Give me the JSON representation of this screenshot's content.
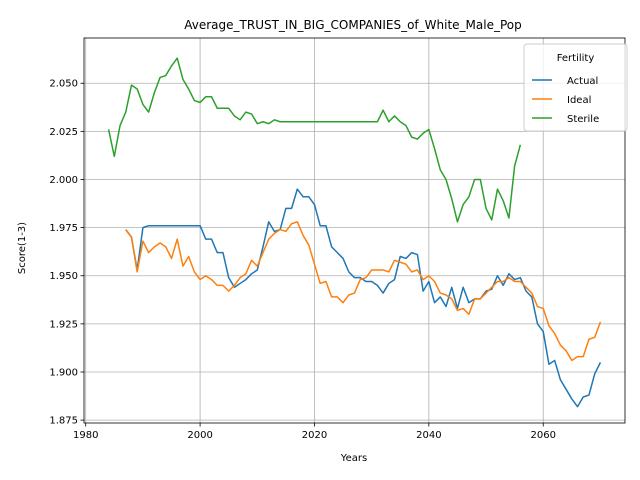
{
  "chart_data": {
    "type": "line",
    "title": "Average_TRUST_IN_BIG_COMPANIES_of_White_Male_Pop",
    "xlabel": "Years",
    "ylabel": "Score(1-3)",
    "xlim": [
      1979.7,
      2074.3
    ],
    "ylim": [
      1.8735,
      2.0735
    ],
    "xticks": [
      1980,
      2000,
      2020,
      2040,
      2060
    ],
    "yticks": [
      1.875,
      1.9,
      1.925,
      1.95,
      1.975,
      2.0,
      2.025,
      2.05
    ],
    "ytick_labels": [
      "1.875",
      "1.900",
      "1.925",
      "1.950",
      "1.975",
      "2.000",
      "2.025",
      "2.050"
    ],
    "grid": true,
    "legend_title": "Fertility",
    "legend_loc": "upper right",
    "series": [
      {
        "name": "Actual",
        "color": "#1f77b4",
        "x": [
          1987,
          1988,
          1989,
          1990,
          1991,
          1992,
          1993,
          1994,
          1995,
          1996,
          1997,
          1998,
          1999,
          2000,
          2001,
          2002,
          2003,
          2004,
          2005,
          2006,
          2007,
          2008,
          2009,
          2010,
          2011,
          2012,
          2013,
          2014,
          2015,
          2016,
          2017,
          2018,
          2019,
          2020,
          2021,
          2022,
          2023,
          2024,
          2025,
          2026,
          2027,
          2028,
          2029,
          2030,
          2031,
          2032,
          2033,
          2034,
          2035,
          2036,
          2037,
          2038,
          2039,
          2040,
          2041,
          2042,
          2043,
          2044,
          2045,
          2046,
          2047,
          2048,
          2049,
          2050,
          2051,
          2052,
          2053,
          2054,
          2055,
          2056,
          2057,
          2058,
          2059,
          2060,
          2061,
          2062,
          2063,
          2064,
          2065,
          2066,
          2067,
          2068,
          2069,
          2070
        ],
        "values": [
          1.974,
          1.97,
          1.953,
          1.975,
          1.976,
          1.976,
          1.976,
          1.976,
          1.976,
          1.976,
          1.976,
          1.976,
          1.976,
          1.976,
          1.969,
          1.969,
          1.962,
          1.962,
          1.949,
          1.944,
          1.946,
          1.948,
          1.951,
          1.953,
          1.965,
          1.978,
          1.973,
          1.974,
          1.985,
          1.985,
          1.995,
          1.991,
          1.991,
          1.987,
          1.976,
          1.976,
          1.965,
          1.962,
          1.959,
          1.952,
          1.949,
          1.949,
          1.947,
          1.947,
          1.945,
          1.941,
          1.946,
          1.948,
          1.96,
          1.959,
          1.962,
          1.961,
          1.942,
          1.947,
          1.936,
          1.939,
          1.934,
          1.944,
          1.933,
          1.944,
          1.936,
          1.938,
          1.938,
          1.942,
          1.943,
          1.95,
          1.945,
          1.951,
          1.948,
          1.949,
          1.942,
          1.939,
          1.925,
          1.921,
          1.904,
          1.906,
          1.896,
          1.891,
          1.886,
          1.882,
          1.887,
          1.888,
          1.899,
          1.905
        ]
      },
      {
        "name": "Ideal",
        "color": "#ff7f0e",
        "x": [
          1987,
          1988,
          1989,
          1990,
          1991,
          1992,
          1993,
          1994,
          1995,
          1996,
          1997,
          1998,
          1999,
          2000,
          2001,
          2002,
          2003,
          2004,
          2005,
          2006,
          2007,
          2008,
          2009,
          2010,
          2011,
          2012,
          2013,
          2014,
          2015,
          2016,
          2017,
          2018,
          2019,
          2020,
          2021,
          2022,
          2023,
          2024,
          2025,
          2026,
          2027,
          2028,
          2029,
          2030,
          2031,
          2032,
          2033,
          2034,
          2035,
          2036,
          2037,
          2038,
          2039,
          2040,
          2041,
          2042,
          2043,
          2044,
          2045,
          2046,
          2047,
          2048,
          2049,
          2050,
          2051,
          2052,
          2053,
          2054,
          2055,
          2056,
          2057,
          2058,
          2059,
          2060,
          2061,
          2062,
          2063,
          2064,
          2065,
          2066,
          2067,
          2068,
          2069,
          2070
        ],
        "values": [
          1.974,
          1.97,
          1.952,
          1.968,
          1.962,
          1.965,
          1.967,
          1.965,
          1.959,
          1.969,
          1.955,
          1.96,
          1.952,
          1.948,
          1.95,
          1.948,
          1.945,
          1.945,
          1.942,
          1.945,
          1.949,
          1.951,
          1.958,
          1.955,
          1.962,
          1.969,
          1.972,
          1.974,
          1.973,
          1.977,
          1.978,
          1.971,
          1.966,
          1.956,
          1.946,
          1.947,
          1.939,
          1.939,
          1.936,
          1.94,
          1.941,
          1.948,
          1.949,
          1.953,
          1.953,
          1.953,
          1.952,
          1.958,
          1.957,
          1.956,
          1.952,
          1.953,
          1.948,
          1.95,
          1.947,
          1.941,
          1.94,
          1.938,
          1.932,
          1.933,
          1.93,
          1.938,
          1.938,
          1.941,
          1.944,
          1.947,
          1.947,
          1.949,
          1.947,
          1.947,
          1.944,
          1.941,
          1.934,
          1.933,
          1.924,
          1.92,
          1.914,
          1.911,
          1.906,
          1.908,
          1.908,
          1.917,
          1.918,
          1.926
        ]
      },
      {
        "name": "Sterile",
        "color": "#2ca02c",
        "x": [
          1984,
          1985,
          1986,
          1987,
          1988,
          1989,
          1990,
          1991,
          1992,
          1993,
          1994,
          1995,
          1996,
          1997,
          1998,
          1999,
          2000,
          2001,
          2002,
          2003,
          2004,
          2005,
          2006,
          2007,
          2008,
          2009,
          2010,
          2011,
          2012,
          2013,
          2014,
          2015,
          2016,
          2017,
          2018,
          2019,
          2020,
          2021,
          2022,
          2023,
          2024,
          2025,
          2026,
          2027,
          2028,
          2029,
          2030,
          2031,
          2032,
          2033,
          2034,
          2035,
          2036,
          2037,
          2038,
          2039,
          2040,
          2041,
          2042,
          2043,
          2044,
          2045,
          2046,
          2047,
          2048,
          2049,
          2050,
          2051,
          2052,
          2053,
          2054,
          2055,
          2056
        ],
        "values": [
          2.026,
          2.012,
          2.028,
          2.035,
          2.049,
          2.047,
          2.039,
          2.035,
          2.045,
          2.053,
          2.054,
          2.059,
          2.063,
          2.052,
          2.047,
          2.041,
          2.04,
          2.043,
          2.043,
          2.037,
          2.037,
          2.037,
          2.033,
          2.031,
          2.035,
          2.034,
          2.029,
          2.03,
          2.029,
          2.031,
          2.03,
          2.03,
          2.03,
          2.03,
          2.03,
          2.03,
          2.03,
          2.03,
          2.03,
          2.03,
          2.03,
          2.03,
          2.03,
          2.03,
          2.03,
          2.03,
          2.03,
          2.03,
          2.036,
          2.03,
          2.033,
          2.03,
          2.028,
          2.022,
          2.021,
          2.024,
          2.026,
          2.016,
          2.005,
          2.0,
          1.99,
          1.978,
          1.987,
          1.991,
          2.0,
          2.0,
          1.985,
          1.979,
          1.995,
          1.989,
          1.98,
          2.007,
          2.018
        ]
      }
    ]
  }
}
